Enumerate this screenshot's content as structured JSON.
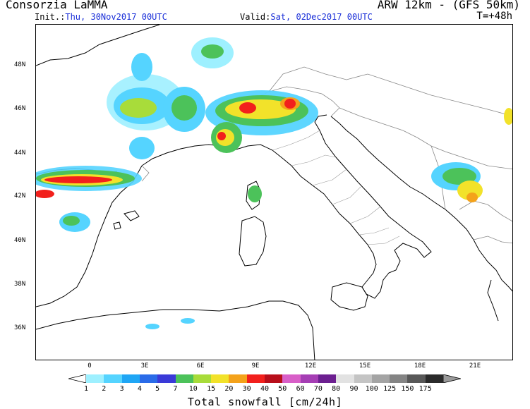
{
  "header": {
    "agency": "Consorzia LaMMA",
    "model": "ARW 12km - (GFS 50km)",
    "init_label": "Init.:",
    "init_value": "Thu, 30Nov2017 00UTC",
    "valid_label": "Valid:",
    "valid_value": "Sat, 02Dec2017 00UTC",
    "step": "T=+48h"
  },
  "map": {
    "lat_labels": [
      "48N",
      "46N",
      "44N",
      "42N",
      "40N",
      "38N",
      "36N"
    ],
    "lon_labels": [
      "0",
      "3E",
      "6E",
      "9E",
      "12E",
      "15E",
      "18E",
      "21E"
    ]
  },
  "colorbar": {
    "title": "Total snowfall [cm/24h]",
    "labels": [
      "1",
      "2",
      "3",
      "4",
      "5",
      "7",
      "10",
      "15",
      "20",
      "30",
      "40",
      "50",
      "60",
      "70",
      "80",
      "90",
      "100",
      "125",
      "150",
      "175"
    ],
    "colors": [
      "#9ef0ff",
      "#55d4ff",
      "#1fa6f5",
      "#2a6be8",
      "#3a3ad8",
      "#4cc25a",
      "#a8dc3a",
      "#f2e22a",
      "#f4a21a",
      "#f2201c",
      "#b80e1a",
      "#d85fc8",
      "#a53eb4",
      "#6c1f90",
      "#e2e2e2",
      "#c4c4c4",
      "#a4a4a4",
      "#848484",
      "#585858",
      "#2a2a2a"
    ]
  }
}
